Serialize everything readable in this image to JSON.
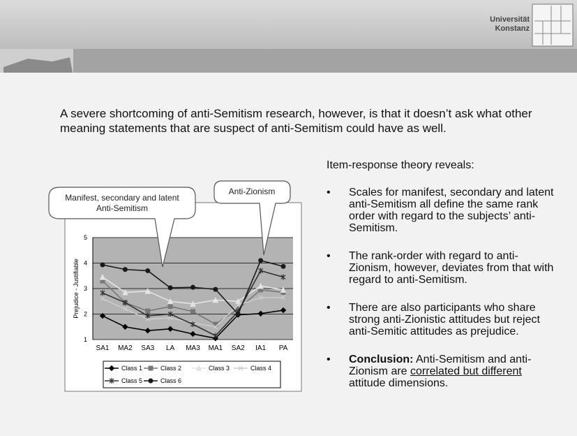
{
  "header": {
    "logo_lines": [
      "Universität",
      "Konstanz"
    ]
  },
  "intro": "A severe shortcoming of anti-Semitism research, however, is that it doesn’t ask what other meaning statements that are suspect of anti-Semitism could have as well.",
  "right": {
    "heading": "Item-response theory reveals:",
    "bullets": [
      "Scales for manifest, secondary and latent anti-Semitism all define the same rank order with regard to the subjects’ anti-Semitism.",
      "The rank-order with regard to anti-Zionism, however, deviates from that with regard to anti-Semitism.",
      "There are also participants who share strong anti-Zionistic attitudes but reject anti-Semitic attitudes as prejudice."
    ],
    "conclusion": {
      "bold": "Conclusion:",
      "text": "Anti-Semitism and anti-Zionism are",
      "underline": "correlated but different",
      "tail": "attitude dimensions."
    }
  },
  "callouts": [
    {
      "lines": [
        "Manifest, secondary and latent",
        "Anti-Semitism"
      ]
    },
    {
      "lines": [
        "Anti-Zionism"
      ]
    }
  ],
  "chart_data": {
    "type": "line",
    "y_label": "Prejudice - Justifiable",
    "categories": [
      "SA1",
      "MA2",
      "SA3",
      "LA",
      "MA3",
      "MA1",
      "SA2",
      "IA1",
      "PA"
    ],
    "ylim": [
      1,
      5
    ],
    "yticks": [
      1,
      2,
      3,
      4,
      5
    ],
    "grid": true,
    "series": [
      {
        "name": "Class 1",
        "color": "#000000",
        "marker": "diamond",
        "values": [
          1.93,
          1.5,
          1.35,
          1.42,
          1.22,
          1.05,
          1.97,
          2.02,
          2.15
        ]
      },
      {
        "name": "Class 2",
        "color": "#777777",
        "marker": "square",
        "values": [
          3.3,
          2.45,
          2.12,
          2.3,
          2.1,
          1.6,
          2.2,
          2.95,
          2.85
        ]
      },
      {
        "name": "Class 3",
        "color": "#e4e4e4",
        "marker": "triangle",
        "values": [
          3.45,
          2.85,
          2.9,
          2.5,
          2.4,
          2.55,
          2.5,
          3.1,
          2.95
        ]
      },
      {
        "name": "Class 4",
        "color": "#cccccc",
        "marker": "x",
        "values": [
          2.6,
          2.2,
          1.8,
          1.85,
          1.65,
          1.5,
          2.35,
          2.65,
          2.65
        ]
      },
      {
        "name": "Class 5",
        "color": "#333333",
        "marker": "star",
        "values": [
          2.83,
          2.45,
          1.93,
          2.0,
          1.6,
          1.15,
          2.1,
          3.7,
          3.45
        ]
      },
      {
        "name": "Class 6",
        "color": "#1a1a1a",
        "marker": "circle",
        "values": [
          3.93,
          3.75,
          3.7,
          3.03,
          3.05,
          2.97,
          2.0,
          4.1,
          3.87
        ]
      }
    ]
  }
}
